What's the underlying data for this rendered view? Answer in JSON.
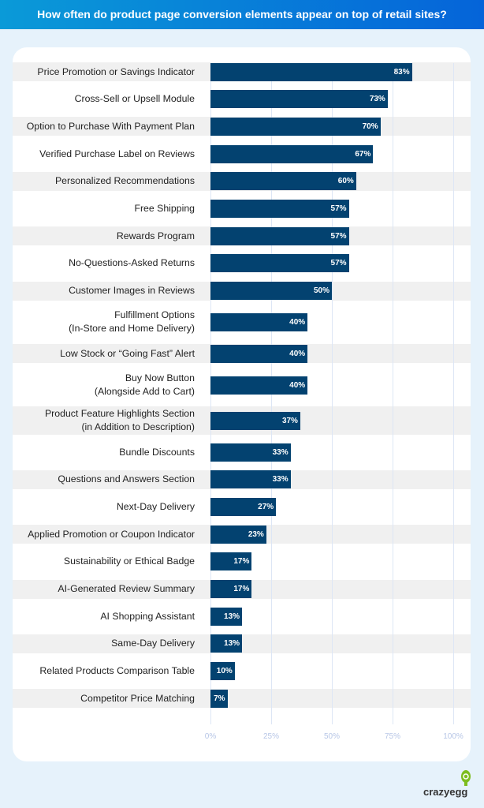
{
  "header": {
    "title": "How often do product page conversion elements appear on top of retail sites?"
  },
  "colors": {
    "bar": "#034270",
    "header_start": "#0a9ad8",
    "header_end": "#0564d9",
    "stripe": "#f0f0f0"
  },
  "chart_data": {
    "type": "bar",
    "orientation": "horizontal",
    "title": "How often do product page conversion elements appear on top of retail sites?",
    "categories": [
      "Price Promotion or Savings Indicator",
      "Cross-Sell or Upsell Module",
      "Option to Purchase With Payment Plan",
      "Verified Purchase Label on Reviews",
      "Personalized Recommendations",
      "Free Shipping",
      "Rewards Program",
      "No-Questions-Asked Returns",
      "Customer Images in Reviews",
      "Fulfillment Options\n(In-Store and Home Delivery)",
      "Low Stock or “Going Fast” Alert",
      "Buy Now Button\n(Alongside Add to Cart)",
      "Product Feature Highlights Section\n(in Addition to Description)",
      "Bundle Discounts",
      "Questions and Answers Section",
      "Next-Day Delivery",
      "Applied Promotion or Coupon Indicator",
      "Sustainability or Ethical Badge",
      "AI-Generated Review Summary",
      "AI Shopping Assistant",
      "Same-Day Delivery",
      "Related Products Comparison Table",
      "Competitor Price Matching"
    ],
    "values": [
      83,
      73,
      70,
      67,
      60,
      57,
      57,
      57,
      50,
      40,
      40,
      40,
      37,
      33,
      33,
      27,
      23,
      17,
      17,
      13,
      13,
      10,
      7
    ],
    "value_labels": [
      "83%",
      "73%",
      "70%",
      "67%",
      "60%",
      "57%",
      "57%",
      "57%",
      "50%",
      "40%",
      "40%",
      "40%",
      "37%",
      "33%",
      "33%",
      "27%",
      "23%",
      "17%",
      "17%",
      "13%",
      "13%",
      "10%",
      "7%"
    ],
    "xlim": [
      0,
      100
    ],
    "x_ticks": [
      "0%",
      "25%",
      "50%",
      "75%",
      "100%"
    ],
    "grid": true
  },
  "brand": {
    "logo_text": "crazyegg"
  }
}
